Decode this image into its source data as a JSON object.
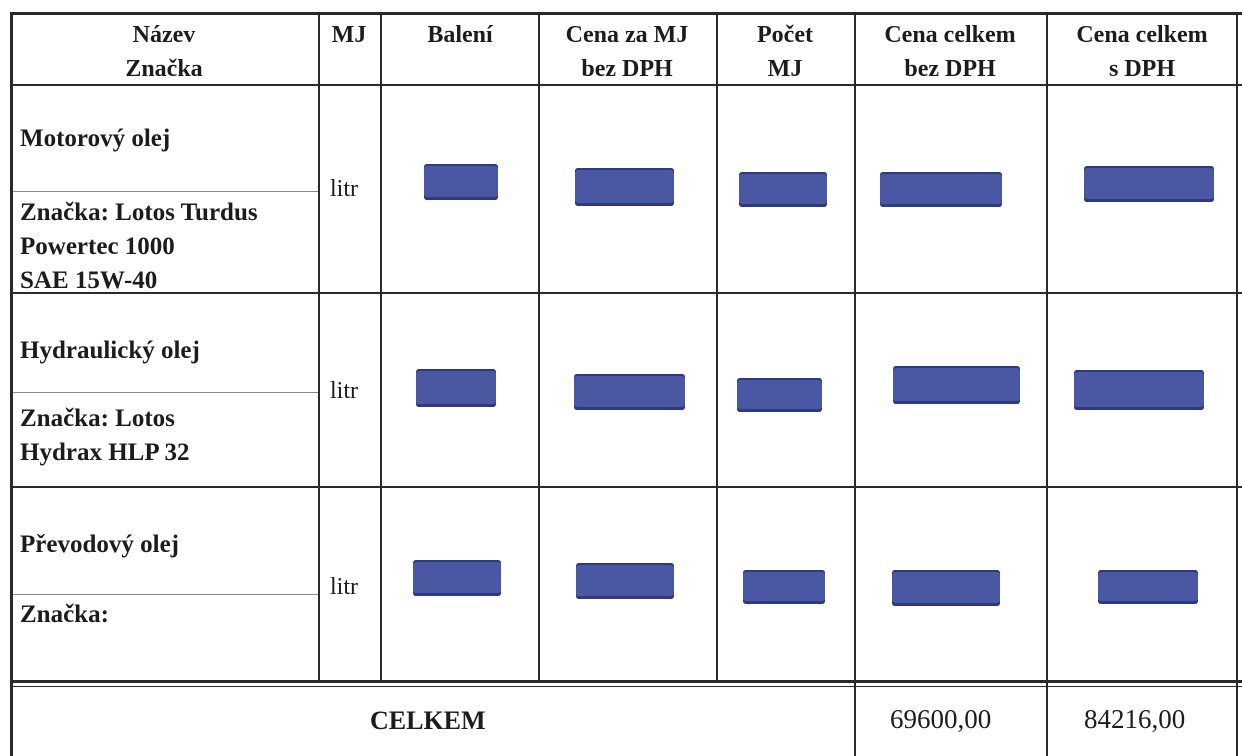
{
  "header": {
    "c1": [
      "Název",
      "Značka"
    ],
    "c2": [
      "MJ"
    ],
    "c3": [
      "Balení"
    ],
    "c4": [
      "Cena za MJ",
      "bez DPH"
    ],
    "c5": [
      "Počet",
      "MJ"
    ],
    "c6": [
      "Cena celkem",
      "bez DPH"
    ],
    "c7": [
      "Cena celkem",
      "s DPH"
    ]
  },
  "rows": [
    {
      "name": "Motorový olej",
      "brand": [
        "Značka: Lotos Turdus",
        "Powertec 1000",
        "SAE 15W-40"
      ],
      "unit": "litr"
    },
    {
      "name": "Hydraulický olej",
      "brand": [
        "Značka: Lotos",
        "Hydrax HLP 32"
      ],
      "unit": "litr"
    },
    {
      "name": "Převodový olej",
      "brand": [
        "Značka:"
      ],
      "unit": "litr"
    }
  ],
  "footer": {
    "label": "CELKEM",
    "total_bez_dph": "69600,00",
    "total_s_dph": "84216,00"
  },
  "colors": {
    "redaction": "#4a57a3",
    "lines": "#2a2a2a"
  }
}
